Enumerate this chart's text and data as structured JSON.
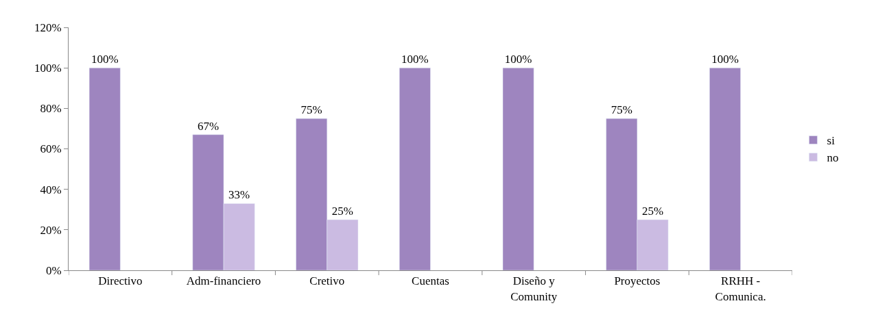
{
  "chart_data": {
    "type": "bar",
    "categories": [
      "Directivo",
      "Adm-financiero",
      "Cretivo",
      "Cuentas",
      "Diseño y\nComunity",
      "Proyectos",
      "RRHH -\nComunica."
    ],
    "series": [
      {
        "name": "si",
        "color": "#9e85bf",
        "values": [
          100,
          67,
          75,
          100,
          100,
          75,
          100
        ],
        "value_labels": [
          "100%",
          "67%",
          "75%",
          "100%",
          "100%",
          "75%",
          "100%"
        ]
      },
      {
        "name": "no",
        "color": "#cbbbe2",
        "values": [
          null,
          33,
          25,
          null,
          null,
          25,
          null
        ],
        "value_labels": [
          null,
          "33%",
          "25%",
          null,
          null,
          "25%",
          null
        ]
      }
    ],
    "ylim": [
      0,
      120
    ],
    "yticks": [
      {
        "value": 0,
        "label": "0%"
      },
      {
        "value": 20,
        "label": "20%"
      },
      {
        "value": 40,
        "label": "40%"
      },
      {
        "value": 60,
        "label": "60%"
      },
      {
        "value": 80,
        "label": "80%"
      },
      {
        "value": 100,
        "label": "100%"
      },
      {
        "value": 120,
        "label": "120%"
      }
    ],
    "grid": false,
    "legend": "right"
  }
}
